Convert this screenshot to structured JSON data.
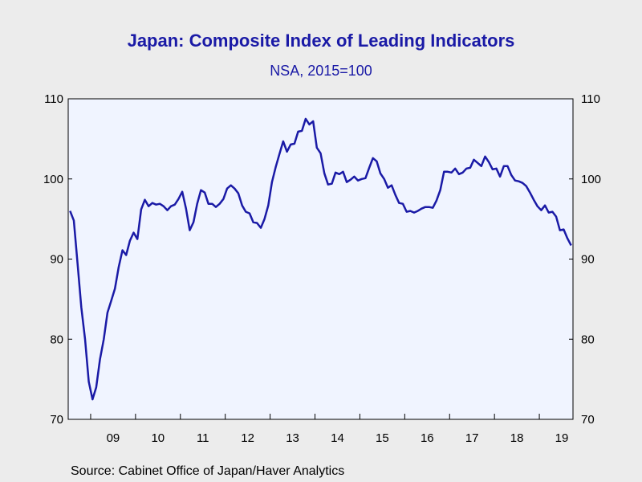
{
  "chart_data": {
    "type": "line",
    "title": "Japan: Composite Index of Leading Indicators",
    "subtitle": "NSA, 2015=100",
    "source": "Source:  Cabinet Office of Japan/Haver Analytics",
    "ylim": [
      70,
      110
    ],
    "yticks": [
      70,
      80,
      90,
      100,
      110
    ],
    "xlim": [
      2008.5,
      2019.75
    ],
    "xticks": [
      {
        "label": "09",
        "year": 2009
      },
      {
        "label": "10",
        "year": 2010
      },
      {
        "label": "11",
        "year": 2011
      },
      {
        "label": "12",
        "year": 2012
      },
      {
        "label": "13",
        "year": 2013
      },
      {
        "label": "14",
        "year": 2014
      },
      {
        "label": "15",
        "year": 2015
      },
      {
        "label": "16",
        "year": 2016
      },
      {
        "label": "17",
        "year": 2017
      },
      {
        "label": "18",
        "year": 2018
      },
      {
        "label": "19",
        "year": 2019
      }
    ],
    "grid": false,
    "line_color": "#1a1aa6",
    "plot_background": "#f0f4ff",
    "series": [
      {
        "x": [
          "2008-07",
          "2008-08",
          "2008-09",
          "2008-10",
          "2008-11",
          "2008-12",
          "2009-01",
          "2009-02",
          "2009-03",
          "2009-04",
          "2009-05",
          "2009-06",
          "2009-07",
          "2009-08",
          "2009-09",
          "2009-10",
          "2009-11",
          "2009-12",
          "2010-01",
          "2010-02",
          "2010-03",
          "2010-04",
          "2010-05",
          "2010-06",
          "2010-07",
          "2010-08",
          "2010-09",
          "2010-10",
          "2010-11",
          "2010-12",
          "2011-01",
          "2011-02",
          "2011-03",
          "2011-04",
          "2011-05",
          "2011-06",
          "2011-07",
          "2011-08",
          "2011-09",
          "2011-10",
          "2011-11",
          "2011-12",
          "2012-01",
          "2012-02",
          "2012-03",
          "2012-04",
          "2012-05",
          "2012-06",
          "2012-07",
          "2012-08",
          "2012-09",
          "2012-10",
          "2012-11",
          "2012-12",
          "2013-01",
          "2013-02",
          "2013-03",
          "2013-04",
          "2013-05",
          "2013-06",
          "2013-07",
          "2013-08",
          "2013-09",
          "2013-10",
          "2013-11",
          "2013-12",
          "2014-01",
          "2014-02",
          "2014-03",
          "2014-04",
          "2014-05",
          "2014-06",
          "2014-07",
          "2014-08",
          "2014-09",
          "2014-10",
          "2014-11",
          "2014-12",
          "2015-01",
          "2015-02",
          "2015-03",
          "2015-04",
          "2015-05",
          "2015-06",
          "2015-07",
          "2015-08",
          "2015-09",
          "2015-10",
          "2015-11",
          "2015-12",
          "2016-01",
          "2016-02",
          "2016-03",
          "2016-04",
          "2016-05",
          "2016-06",
          "2016-07",
          "2016-08",
          "2016-09",
          "2016-10",
          "2016-11",
          "2016-12",
          "2017-01",
          "2017-02",
          "2017-03",
          "2017-04",
          "2017-05",
          "2017-06",
          "2017-07",
          "2017-08",
          "2017-09",
          "2017-10",
          "2017-11",
          "2017-12",
          "2018-01",
          "2018-02",
          "2018-03",
          "2018-04",
          "2018-05",
          "2018-06",
          "2018-07",
          "2018-08",
          "2018-09",
          "2018-10",
          "2018-11",
          "2018-12",
          "2019-01",
          "2019-02",
          "2019-03",
          "2019-04",
          "2019-05",
          "2019-06",
          "2019-07",
          "2019-08",
          "2019-09"
        ],
        "values": [
          96.0,
          94.8,
          89.5,
          84.0,
          80.0,
          74.7,
          72.5,
          74.0,
          77.5,
          80.0,
          83.3,
          84.8,
          86.3,
          89.0,
          91.1,
          90.5,
          92.3,
          93.3,
          92.5,
          96.2,
          97.4,
          96.6,
          97.0,
          96.8,
          96.9,
          96.6,
          96.1,
          96.6,
          96.8,
          97.5,
          98.4,
          96.3,
          93.6,
          94.6,
          96.9,
          98.6,
          98.3,
          96.9,
          96.9,
          96.5,
          96.9,
          97.5,
          98.8,
          99.2,
          98.8,
          98.2,
          96.7,
          95.9,
          95.7,
          94.6,
          94.5,
          93.9,
          95.0,
          96.7,
          99.6,
          101.5,
          103.1,
          104.7,
          103.4,
          104.3,
          104.4,
          105.9,
          106.0,
          107.5,
          106.8,
          107.2,
          103.9,
          103.2,
          100.7,
          99.3,
          99.4,
          100.8,
          100.6,
          100.9,
          99.6,
          99.9,
          100.3,
          99.8,
          100.0,
          100.1,
          101.4,
          102.6,
          102.2,
          100.7,
          100.0,
          98.9,
          99.2,
          98.0,
          97.0,
          96.9,
          95.9,
          96.0,
          95.8,
          96.0,
          96.3,
          96.5,
          96.5,
          96.4,
          97.3,
          98.6,
          100.9,
          100.9,
          100.8,
          101.3,
          100.6,
          100.8,
          101.3,
          101.4,
          102.4,
          102.0,
          101.6,
          102.8,
          102.1,
          101.2,
          101.3,
          100.3,
          101.6,
          101.6,
          100.5,
          99.8,
          99.7,
          99.5,
          99.1,
          98.3,
          97.4,
          96.6,
          96.1,
          96.7,
          95.8,
          95.9,
          95.3,
          93.6,
          93.7,
          92.6,
          91.7
        ]
      }
    ]
  }
}
